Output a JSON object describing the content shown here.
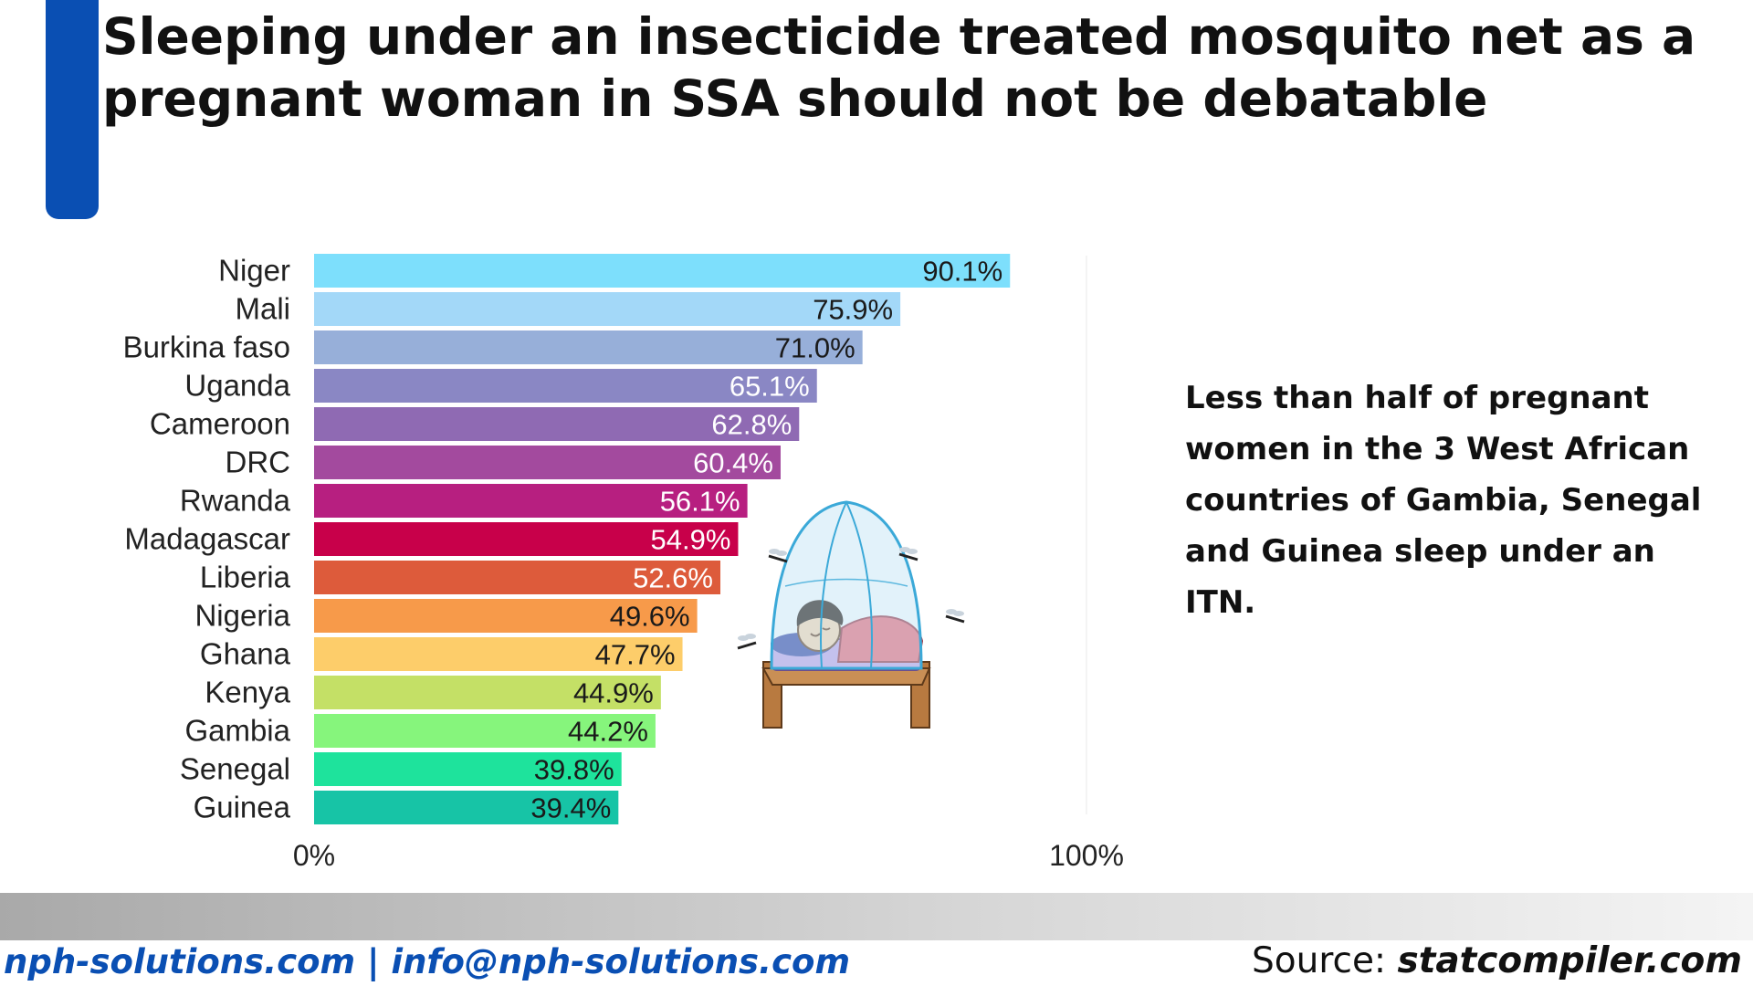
{
  "title": "Sleeping under an insecticide treated mosquito net as a pregnant woman in SSA should not be debatable",
  "callout": "Less than half of pregnant women in the 3 West African countries of Gambia, Senegal and Guinea sleep under an ITN.",
  "footer": {
    "links": "nph-solutions.com | info@nph-solutions.com",
    "source_label": "Source: ",
    "source_site": "statcompiler.com"
  },
  "colors": {
    "accent": "#0a4fb3",
    "bars": [
      "#7ddffc",
      "#a3d8f8",
      "#97afd9",
      "#8a87c4",
      "#8f6ab3",
      "#a34a9e",
      "#b71f80",
      "#c8004a",
      "#dd5b3b",
      "#f79a4a",
      "#fdcd6a",
      "#c4e066",
      "#86f57c",
      "#1ee39c",
      "#17c4a6"
    ]
  },
  "chart_data": {
    "type": "bar",
    "orientation": "horizontal",
    "categories": [
      "Niger",
      "Mali",
      "Burkina faso",
      "Uganda",
      "Cameroon",
      "DRC",
      "Rwanda",
      "Madagascar",
      "Liberia",
      "Nigeria",
      "Ghana",
      "Kenya",
      "Gambia",
      "Senegal",
      "Guinea"
    ],
    "values": [
      90.1,
      75.9,
      71.0,
      65.1,
      62.8,
      60.4,
      56.1,
      54.9,
      52.6,
      49.6,
      47.7,
      44.9,
      44.2,
      39.8,
      39.4
    ],
    "labels": [
      "90.1%",
      "75.9%",
      "71.0%",
      "65.1%",
      "62.8%",
      "60.4%",
      "56.1%",
      "54.9%",
      "52.6%",
      "49.6%",
      "47.7%",
      "44.9%",
      "44.2%",
      "39.8%",
      "39.4%"
    ],
    "xlim": [
      0,
      100
    ],
    "xticks": [
      "0%",
      "100%"
    ],
    "grid": false
  },
  "illustration": {
    "name": "woman-sleeping-under-mosquito-net"
  }
}
